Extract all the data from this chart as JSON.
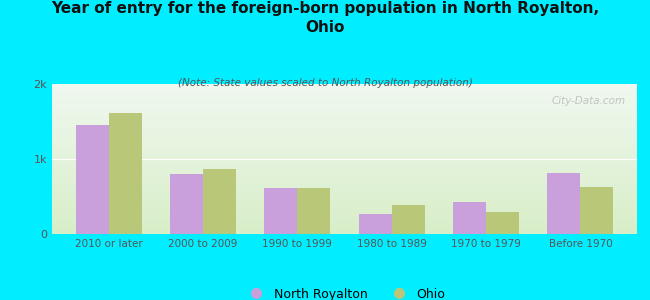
{
  "title": "Year of entry for the foreign-born population in North Royalton,\nOhio",
  "subtitle": "(Note: State values scaled to North Royalton population)",
  "categories": [
    "2010 or later",
    "2000 to 2009",
    "1990 to 1999",
    "1980 to 1989",
    "1970 to 1979",
    "Before 1970"
  ],
  "north_royalton": [
    1450,
    800,
    620,
    270,
    430,
    820
  ],
  "ohio": [
    1620,
    870,
    610,
    390,
    300,
    630
  ],
  "bar_color_nr": "#c9a0dc",
  "bar_color_ohio": "#b8c878",
  "background_outer": "#00eeff",
  "background_inner_top": "#f0f8f0",
  "background_inner_bottom": "#d8eec8",
  "ylim": [
    0,
    2000
  ],
  "yticks": [
    0,
    1000,
    2000
  ],
  "ytick_labels": [
    "0",
    "1k",
    "2k"
  ],
  "bar_width": 0.35,
  "watermark": "City-Data.com",
  "legend_labels": [
    "North Royalton",
    "Ohio"
  ]
}
